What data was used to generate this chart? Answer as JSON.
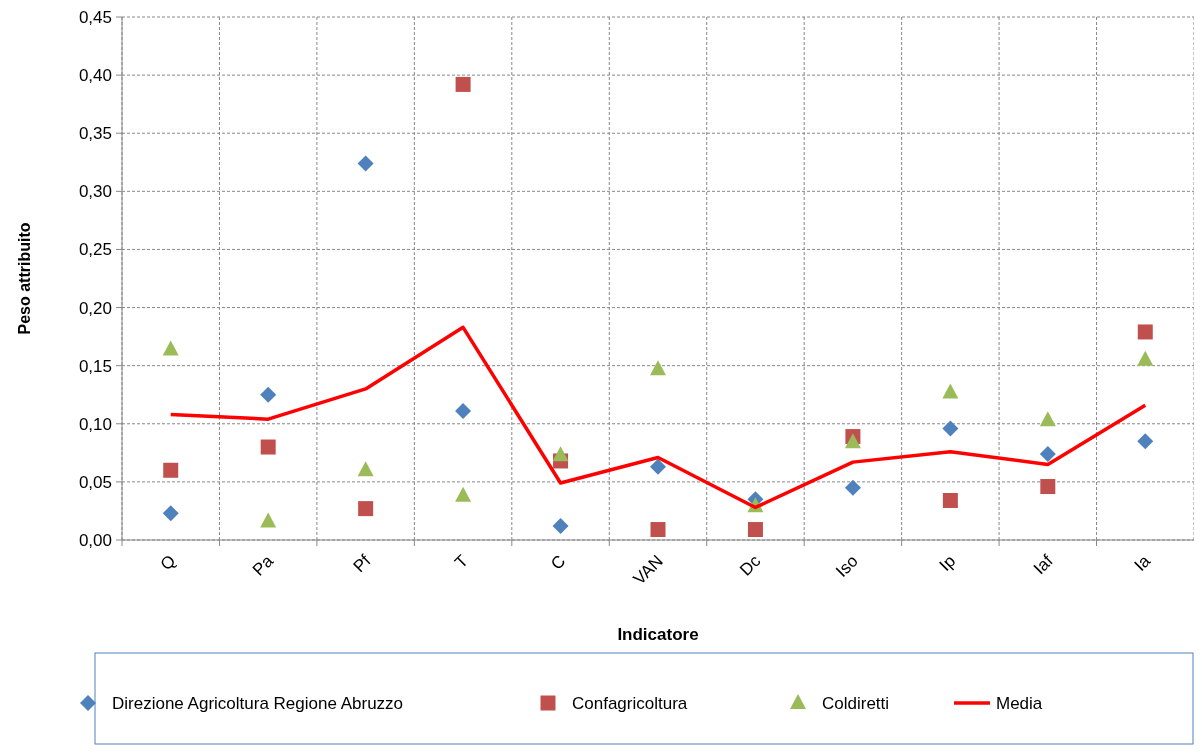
{
  "chart_data": {
    "type": "scatter",
    "xlabel": "Indicatore",
    "ylabel": "Peso attribuito",
    "categories": [
      "Q",
      "Pa",
      "Pf",
      "T",
      "C",
      "VAN",
      "Dc",
      "Iso",
      "Ip",
      "Iaf",
      "Ia"
    ],
    "series": [
      {
        "name": "Direzione Agricoltura Regione Abruzzo",
        "color": "#4f81bd",
        "marker": "diamond",
        "values": [
          0.023,
          0.125,
          0.324,
          0.111,
          0.012,
          0.063,
          0.035,
          0.045,
          0.096,
          0.074,
          0.085
        ]
      },
      {
        "name": "Confagricoltura",
        "color": "#c0504d",
        "marker": "square",
        "values": [
          0.06,
          0.08,
          0.027,
          0.392,
          0.068,
          0.009,
          0.009,
          0.089,
          0.034,
          0.046,
          0.179
        ]
      },
      {
        "name": "Coldiretti",
        "color": "#9bbb59",
        "marker": "triangle",
        "values": [
          0.164,
          0.016,
          0.06,
          0.038,
          0.073,
          0.147,
          0.029,
          0.084,
          0.127,
          0.103,
          0.155
        ]
      },
      {
        "name": "Media",
        "type": "line",
        "color": "#ff0000",
        "marker": "none",
        "values": [
          0.108,
          0.104,
          0.13,
          0.183,
          0.049,
          0.071,
          0.028,
          0.067,
          0.076,
          0.065,
          0.116
        ]
      }
    ],
    "ylim": [
      0,
      0.45
    ],
    "yticks": [
      {
        "value": 0,
        "label": "0,00"
      },
      {
        "value": 0.05,
        "label": "0,05"
      },
      {
        "value": 0.1,
        "label": "0,10"
      },
      {
        "value": 0.15,
        "label": "0,15"
      },
      {
        "value": 0.2,
        "label": "0,20"
      },
      {
        "value": 0.25,
        "label": "0,25"
      },
      {
        "value": 0.3,
        "label": "0,30"
      },
      {
        "value": 0.35,
        "label": "0,35"
      },
      {
        "value": 0.4,
        "label": "0,40"
      },
      {
        "value": 0.45,
        "label": "0,45"
      }
    ],
    "grid": true,
    "legend": "bottom"
  }
}
